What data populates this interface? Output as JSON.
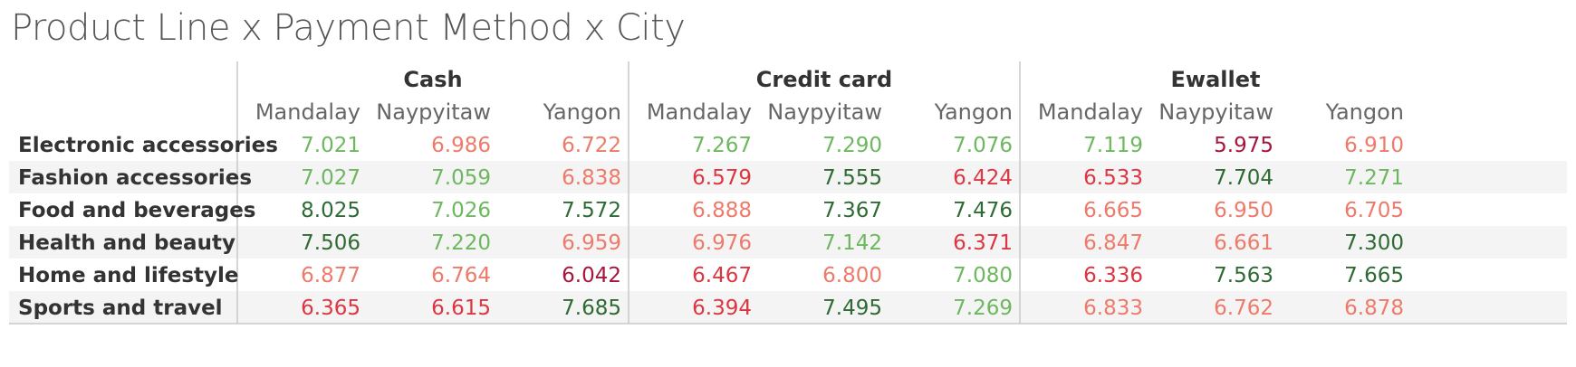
{
  "title": "Product Line x Payment Method x City",
  "colors": {
    "dark_green": "#2e6b34",
    "mid_green": "#3e8f44",
    "light_green": "#6db85f",
    "light_red": "#ee7a6a",
    "red": "#de3640",
    "dark_red": "#a8153c",
    "band": "#f4f4f4",
    "divider": "#c8c8c8"
  },
  "chart_data": {
    "type": "table",
    "payment_methods": [
      "Cash",
      "Credit card",
      "Ewallet"
    ],
    "cities": [
      "Mandalay",
      "Naypyitaw",
      "Yangon"
    ],
    "rows": [
      {
        "label": "Electronic accessories",
        "values": [
          7.021,
          6.986,
          6.722,
          7.267,
          7.29,
          7.076,
          7.119,
          5.975,
          6.91
        ]
      },
      {
        "label": "Fashion accessories",
        "values": [
          7.027,
          7.059,
          6.838,
          6.579,
          7.555,
          6.424,
          6.533,
          7.704,
          7.271
        ]
      },
      {
        "label": "Food and beverages",
        "values": [
          8.025,
          7.026,
          7.572,
          6.888,
          7.367,
          7.476,
          6.665,
          6.95,
          6.705
        ]
      },
      {
        "label": "Health and beauty",
        "values": [
          7.506,
          7.22,
          6.959,
          6.976,
          7.142,
          6.371,
          6.847,
          6.661,
          7.3
        ]
      },
      {
        "label": "Home and lifestyle",
        "values": [
          6.877,
          6.764,
          6.042,
          6.467,
          6.8,
          7.08,
          6.336,
          7.563,
          7.665
        ]
      },
      {
        "label": "Sports and travel",
        "values": [
          6.365,
          6.615,
          7.685,
          6.394,
          7.495,
          7.269,
          6.833,
          6.762,
          6.878
        ]
      }
    ]
  }
}
